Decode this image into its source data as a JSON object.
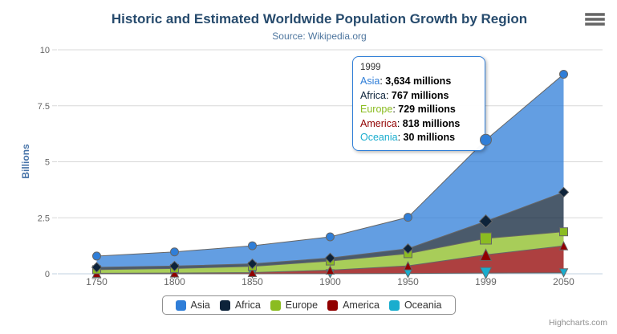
{
  "chart_data": {
    "type": "area",
    "stacking": "normal",
    "title": "Historic and Estimated Worldwide Population Growth by Region",
    "subtitle": "Source: Wikipedia.org",
    "xlabel": "",
    "ylabel": "Billions",
    "ylim": [
      0,
      10
    ],
    "yticks": [
      0,
      2.5,
      5,
      7.5,
      10
    ],
    "categories": [
      "1750",
      "1800",
      "1850",
      "1900",
      "1950",
      "1999",
      "2050"
    ],
    "unit": "millions",
    "grid": "horizontal",
    "legend_position": "bottom",
    "series": [
      {
        "name": "Asia",
        "color": "#2f7ed8",
        "marker": "circle",
        "values": [
          502,
          635,
          809,
          947,
          1402,
          3634,
          5268
        ]
      },
      {
        "name": "Africa",
        "color": "#0d233a",
        "marker": "diamond",
        "values": [
          106,
          107,
          111,
          133,
          221,
          767,
          1766
        ]
      },
      {
        "name": "Europe",
        "color": "#8bbc21",
        "marker": "square",
        "values": [
          163,
          203,
          276,
          408,
          547,
          729,
          628
        ]
      },
      {
        "name": "America",
        "color": "#910000",
        "marker": "triangle-up",
        "values": [
          18,
          31,
          54,
          156,
          339,
          818,
          1201
        ]
      },
      {
        "name": "Oceania",
        "color": "#1aadce",
        "marker": "triangle-down",
        "values": [
          2,
          2,
          2,
          6,
          13,
          30,
          46
        ]
      }
    ],
    "hover": {
      "category": "1999",
      "category_index": 5
    },
    "tooltip": {
      "header": "1999",
      "suffix": " millions",
      "rows": [
        {
          "name": "Asia",
          "value": "3,634"
        },
        {
          "name": "Africa",
          "value": "767"
        },
        {
          "name": "Europe",
          "value": "729"
        },
        {
          "name": "America",
          "value": "818"
        },
        {
          "name": "Oceania",
          "value": "30"
        }
      ]
    }
  },
  "colors": {
    "title": "#274b6d",
    "subtitle": "#4d759e",
    "axis_labels": "#666666",
    "y_axis_title": "#4572a7",
    "gridline": "#d8d8d8",
    "axis_line": "#c0d0e0",
    "series_outline": "#666666",
    "legend_border": "#909090",
    "legend_text": "#333333",
    "tooltip_border": "#2f7ed8",
    "credits": "#909090"
  },
  "credits": "Highcharts.com"
}
